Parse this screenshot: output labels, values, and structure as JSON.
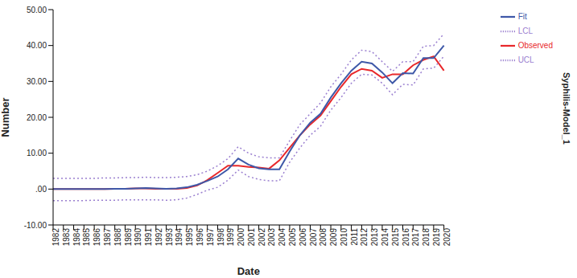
{
  "chart_data": {
    "type": "line",
    "x_label": "Date",
    "y_label": "Number",
    "annotations": [
      "Syphilis-Model_1"
    ],
    "categories": [
      "1982",
      "1983",
      "1984",
      "1985",
      "1986",
      "1987",
      "1988",
      "1989",
      "1990",
      "1991",
      "1992",
      "1993",
      "1994",
      "1995",
      "1996",
      "1997",
      "1998",
      "1999",
      "2000",
      "2001",
      "2002",
      "2003",
      "2004",
      "2005",
      "2006",
      "2007",
      "2008",
      "2009",
      "2010",
      "2011",
      "2012",
      "2013",
      "2014",
      "2015",
      "2016",
      "2017",
      "2018",
      "2019",
      "2020"
    ],
    "series": [
      {
        "name": "Observed",
        "color": "#e8282b",
        "line_style": "solid",
        "values": [
          0,
          0,
          0,
          0,
          0,
          0,
          0.1,
          0.1,
          0.2,
          0.2,
          0.1,
          0.1,
          0.1,
          0.3,
          1,
          2.5,
          4.5,
          6.5,
          6.5,
          6.2,
          6,
          5.7,
          8,
          11.5,
          15,
          18,
          20.5,
          24.5,
          28.5,
          32,
          33.5,
          33,
          31,
          32,
          32,
          34.5,
          36,
          37,
          33
        ]
      },
      {
        "name": "Fit",
        "color": "#3e58a8",
        "line_style": "solid",
        "values": [
          0,
          0,
          0,
          0,
          0,
          0,
          0.1,
          0.1,
          0.2,
          0.3,
          0.2,
          0.1,
          0.2,
          0.5,
          1.2,
          2.3,
          3.5,
          5.5,
          8.5,
          6.8,
          5.8,
          5.5,
          5.5,
          10.5,
          15,
          18.5,
          21,
          25.5,
          29.5,
          33,
          35.5,
          35,
          32.5,
          29.5,
          32.3,
          32.2,
          36.5,
          36.5,
          40
        ]
      },
      {
        "name": "UCL",
        "color": "#9b80d0",
        "line_style": "dotted",
        "values": [
          3,
          3,
          3,
          3,
          3,
          3.1,
          3.1,
          3.2,
          3.2,
          3.3,
          3.2,
          3.2,
          3.3,
          3.5,
          4,
          5,
          6.5,
          8.5,
          11.8,
          10,
          9,
          8.7,
          8.7,
          13.5,
          18,
          21,
          24,
          28.5,
          32,
          36,
          38.7,
          38.3,
          35.5,
          32.8,
          35.5,
          35.5,
          39.8,
          40,
          43.3
        ]
      },
      {
        "name": "LCL",
        "color": "#9b80d0",
        "line_style": "dotted",
        "values": [
          -3.2,
          -3.2,
          -3.2,
          -3.2,
          -3.1,
          -3.1,
          -3.1,
          -3,
          -3,
          -3,
          -3,
          -3.1,
          -3,
          -2.5,
          -1.5,
          -0.3,
          0.5,
          2.5,
          5.3,
          3.5,
          2.7,
          2.3,
          2.3,
          7.5,
          11.5,
          15,
          17.5,
          22,
          25.5,
          29.5,
          32,
          31.8,
          29.5,
          26.3,
          29.2,
          29,
          33.5,
          33.7,
          37
        ]
      }
    ],
    "ylim": [
      -10,
      50
    ],
    "yticks": [
      {
        "value": -10,
        "label": "-10.00"
      },
      {
        "value": 0,
        "label": ".00"
      },
      {
        "value": 10,
        "label": "10.00"
      },
      {
        "value": 20,
        "label": "20.00"
      },
      {
        "value": 30,
        "label": "30.00"
      },
      {
        "value": 40,
        "label": "40.00"
      },
      {
        "value": 50,
        "label": "50.00"
      }
    ],
    "grid": false,
    "legend": "top-right"
  }
}
